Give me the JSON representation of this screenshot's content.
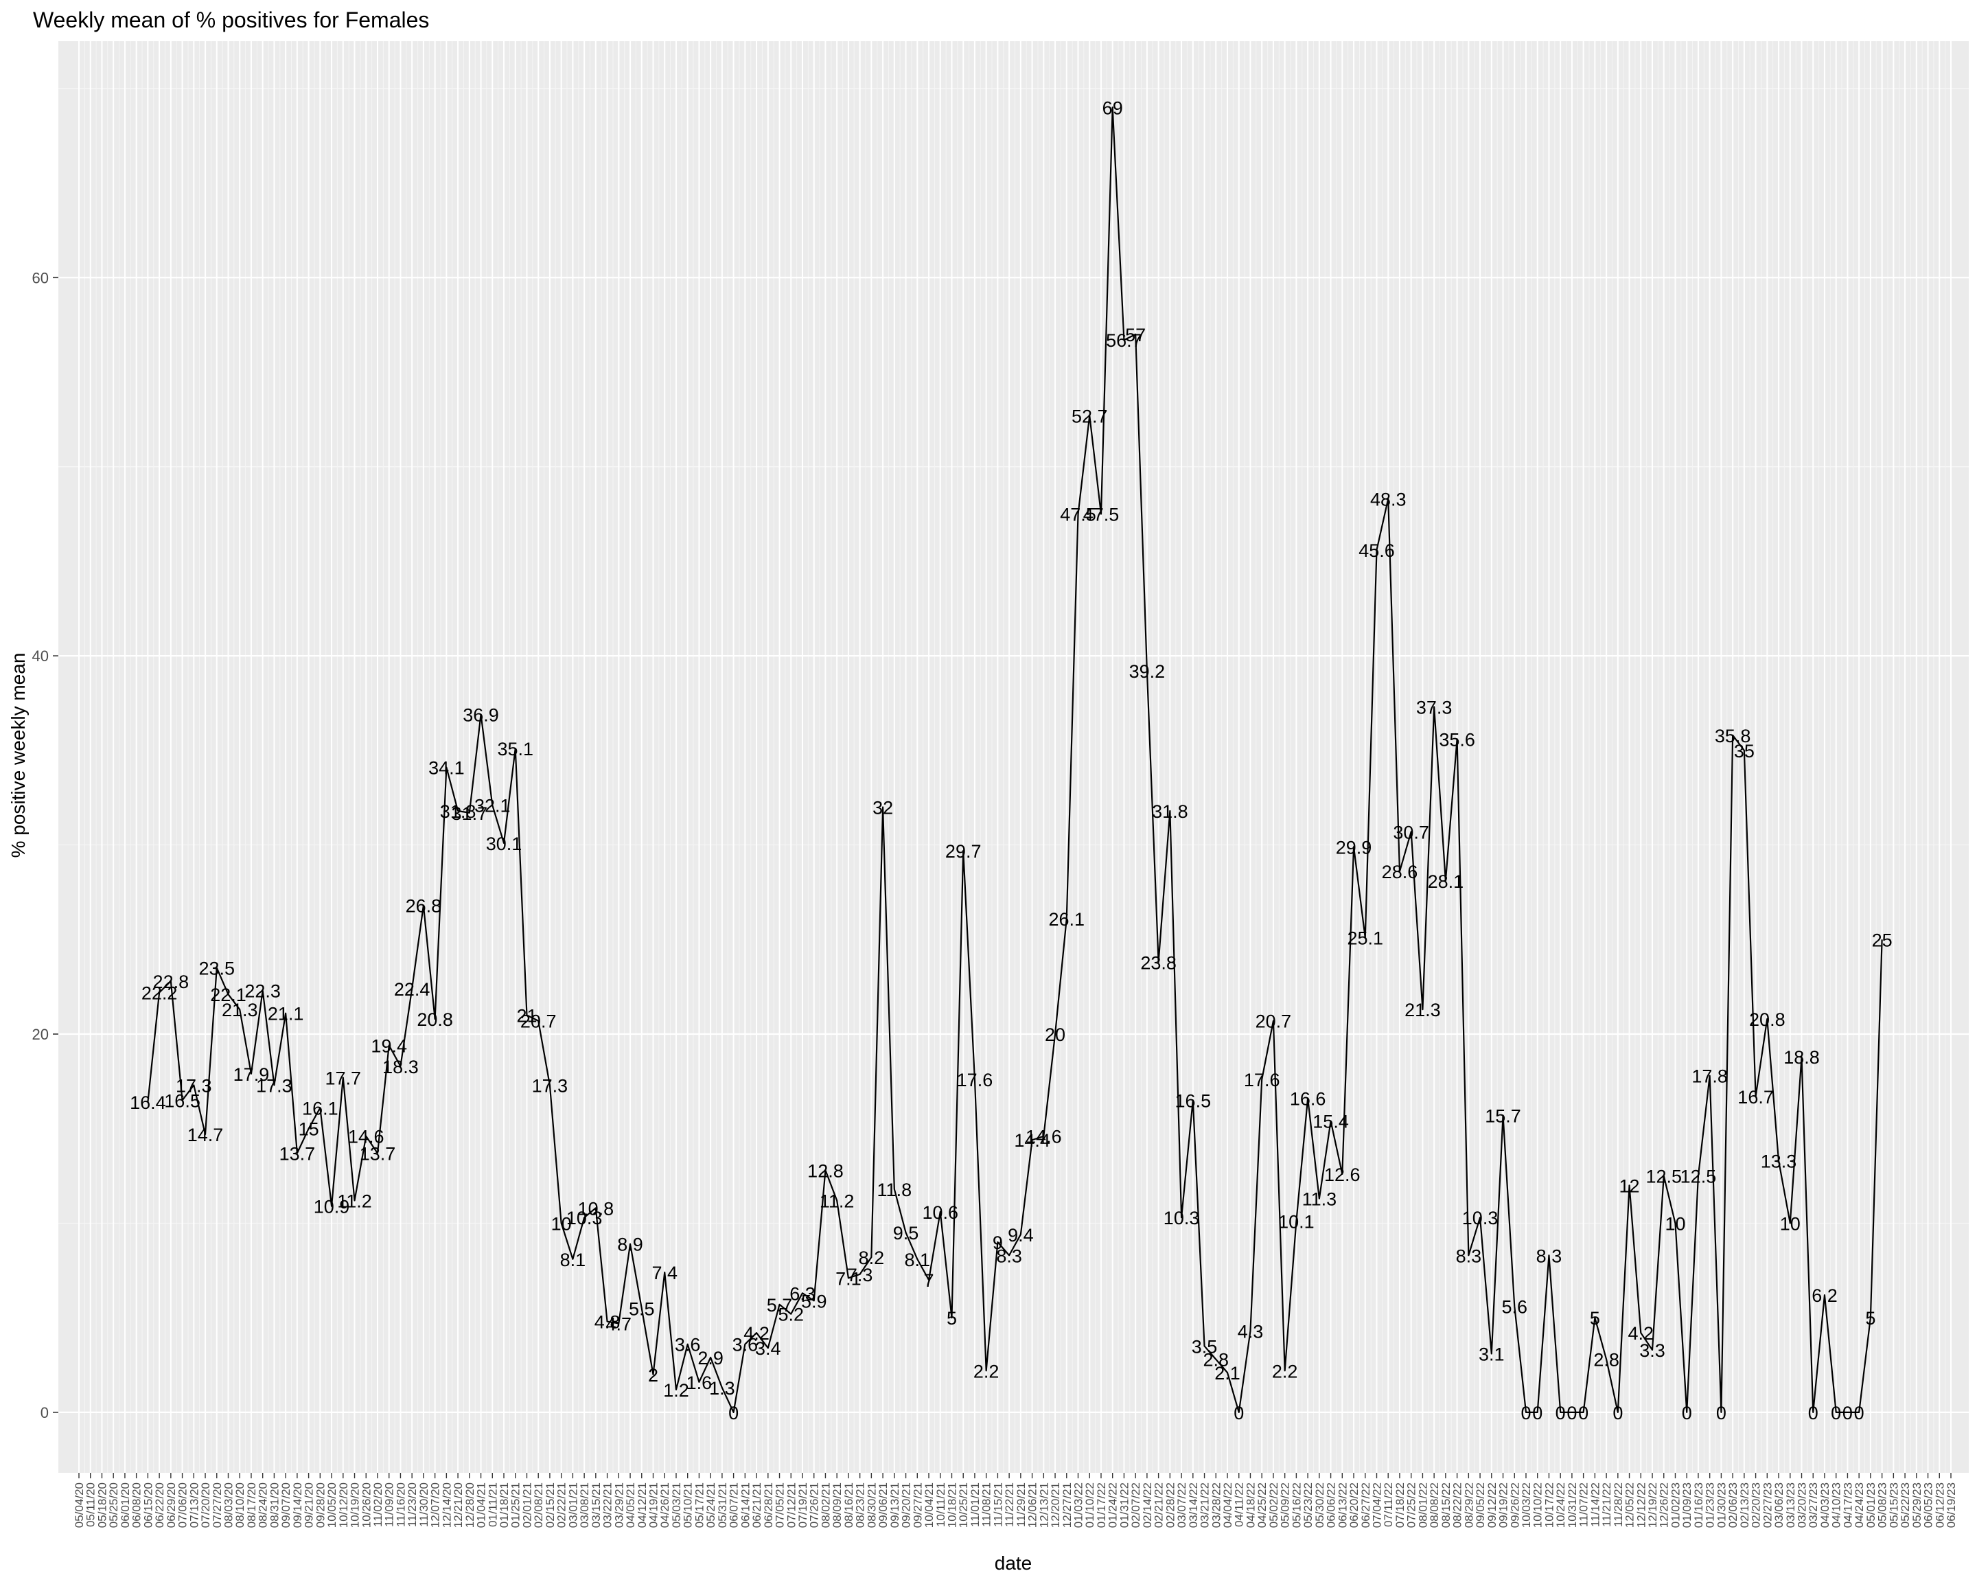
{
  "chart_data": {
    "type": "line",
    "title": "Weekly mean of % positives for Females",
    "xlabel": "date",
    "ylabel": "% positive weekly mean",
    "y_ticks": [
      0,
      20,
      40,
      60
    ],
    "ylim": [
      -3.2,
      72.5
    ],
    "grid": true,
    "x_first": "05/04/20",
    "x_last": "06/19/23",
    "x_tick_interval_days": 7,
    "series": [
      {
        "color": "#000000",
        "points": [
          {
            "x": "06/15/20",
            "y": 16.4,
            "label": "16.4"
          },
          {
            "x": "06/22/20",
            "y": 22.2,
            "label": "22.2"
          },
          {
            "x": "06/29/20",
            "y": 22.8,
            "label": "22.8"
          },
          {
            "x": "07/06/20",
            "y": 16.5,
            "label": "16.5"
          },
          {
            "x": "07/13/20",
            "y": 17.3,
            "label": "17.3"
          },
          {
            "x": "07/20/20",
            "y": 14.7,
            "label": "14.7"
          },
          {
            "x": "07/27/20",
            "y": 23.5,
            "label": "23.5"
          },
          {
            "x": "08/03/20",
            "y": 22.1,
            "label": "22.1"
          },
          {
            "x": "08/10/20",
            "y": 21.3,
            "label": "21.3"
          },
          {
            "x": "08/17/20",
            "y": 17.9,
            "label": "17.9"
          },
          {
            "x": "08/24/20",
            "y": 22.3,
            "label": "22.3"
          },
          {
            "x": "08/31/20",
            "y": 17.3,
            "label": "17.3"
          },
          {
            "x": "09/07/20",
            "y": 21.1,
            "label": "21.1"
          },
          {
            "x": "09/14/20",
            "y": 13.7,
            "label": "13.7"
          },
          {
            "x": "09/21/20",
            "y": 15,
            "label": "15"
          },
          {
            "x": "09/28/20",
            "y": 16.1,
            "label": "16.1"
          },
          {
            "x": "10/05/20",
            "y": 10.9,
            "label": "10.9"
          },
          {
            "x": "10/12/20",
            "y": 17.7,
            "label": "17.7"
          },
          {
            "x": "10/19/20",
            "y": 11.2,
            "label": "11.2"
          },
          {
            "x": "10/26/20",
            "y": 14.6,
            "label": "14.6"
          },
          {
            "x": "11/02/20",
            "y": 13.7,
            "label": "13.7"
          },
          {
            "x": "11/09/20",
            "y": 19.4,
            "label": "19.4"
          },
          {
            "x": "11/16/20",
            "y": 18.3,
            "label": "18.3"
          },
          {
            "x": "11/23/20",
            "y": 22.4,
            "label": "22.4"
          },
          {
            "x": "11/30/20",
            "y": 26.8,
            "label": "26.8"
          },
          {
            "x": "12/07/20",
            "y": 20.8,
            "label": "20.8"
          },
          {
            "x": "12/14/20",
            "y": 34.1,
            "label": "34.1"
          },
          {
            "x": "12/21/20",
            "y": 31.8,
            "label": "31.8"
          },
          {
            "x": "12/28/20",
            "y": 31.7,
            "label": "31.7"
          },
          {
            "x": "01/04/21",
            "y": 36.9,
            "label": "36.9"
          },
          {
            "x": "01/11/21",
            "y": 32.1,
            "label": "32.1"
          },
          {
            "x": "01/18/21",
            "y": 30.1,
            "label": "30.1"
          },
          {
            "x": "01/25/21",
            "y": 35.1,
            "label": "35.1"
          },
          {
            "x": "02/01/21",
            "y": 21,
            "label": "21"
          },
          {
            "x": "02/08/21",
            "y": 20.7,
            "label": "20.7"
          },
          {
            "x": "02/15/21",
            "y": 17.3,
            "label": "17.3"
          },
          {
            "x": "02/22/21",
            "y": 10,
            "label": "10"
          },
          {
            "x": "03/01/21",
            "y": 8.1,
            "label": "8.1"
          },
          {
            "x": "03/08/21",
            "y": 10.3,
            "label": "10.3"
          },
          {
            "x": "03/15/21",
            "y": 10.8,
            "label": "10.8"
          },
          {
            "x": "03/22/21",
            "y": 4.8,
            "label": "4.8"
          },
          {
            "x": "03/29/21",
            "y": 4.7,
            "label": "4.7"
          },
          {
            "x": "04/05/21",
            "y": 8.9,
            "label": "8.9"
          },
          {
            "x": "04/12/21",
            "y": 5.5,
            "label": "5.5"
          },
          {
            "x": "04/19/21",
            "y": 2,
            "label": "2"
          },
          {
            "x": "04/26/21",
            "y": 7.4,
            "label": "7.4"
          },
          {
            "x": "05/03/21",
            "y": 1.2,
            "label": "1.2"
          },
          {
            "x": "05/10/21",
            "y": 3.6,
            "label": "3.6"
          },
          {
            "x": "05/17/21",
            "y": 1.6,
            "label": "1.6"
          },
          {
            "x": "05/24/21",
            "y": 2.9,
            "label": "2.9"
          },
          {
            "x": "05/31/21",
            "y": 1.3,
            "label": "1.3"
          },
          {
            "x": "06/07/21",
            "y": 0,
            "label": "0"
          },
          {
            "x": "06/14/21",
            "y": 3.6,
            "label": "3.6"
          },
          {
            "x": "06/21/21",
            "y": 4.2,
            "label": "4.2"
          },
          {
            "x": "06/28/21",
            "y": 3.4,
            "label": "3.4"
          },
          {
            "x": "07/05/21",
            "y": 5.7,
            "label": "5.7"
          },
          {
            "x": "07/12/21",
            "y": 5.2,
            "label": "5.2"
          },
          {
            "x": "07/19/21",
            "y": 6.3,
            "label": "6.3"
          },
          {
            "x": "07/26/21",
            "y": 5.9,
            "label": "5.9"
          },
          {
            "x": "08/02/21",
            "y": 12.8,
            "label": "12.8"
          },
          {
            "x": "08/09/21",
            "y": 11.2,
            "label": "11.2"
          },
          {
            "x": "08/16/21",
            "y": 7.1,
            "label": "7.1"
          },
          {
            "x": "08/23/21",
            "y": 7.3,
            "label": "7.3"
          },
          {
            "x": "08/30/21",
            "y": 8.2,
            "label": "8.2"
          },
          {
            "x": "09/06/21",
            "y": 32,
            "label": "32"
          },
          {
            "x": "09/13/21",
            "y": 11.8,
            "label": "11.8"
          },
          {
            "x": "09/20/21",
            "y": 9.5,
            "label": "9.5"
          },
          {
            "x": "09/27/21",
            "y": 8.1,
            "label": "8.1"
          },
          {
            "x": "10/04/21",
            "y": 7,
            "label": "7"
          },
          {
            "x": "10/11/21",
            "y": 10.6,
            "label": "10.6"
          },
          {
            "x": "10/18/21",
            "y": 5,
            "label": "5"
          },
          {
            "x": "10/25/21",
            "y": 29.7,
            "label": "29.7"
          },
          {
            "x": "11/01/21",
            "y": 17.6,
            "label": "17.6"
          },
          {
            "x": "11/08/21",
            "y": 2.2,
            "label": "2.2"
          },
          {
            "x": "11/15/21",
            "y": 9,
            "label": "9"
          },
          {
            "x": "11/22/21",
            "y": 8.3,
            "label": "8.3"
          },
          {
            "x": "11/29/21",
            "y": 9.4,
            "label": "9.4"
          },
          {
            "x": "12/06/21",
            "y": 14.4,
            "label": "14.4"
          },
          {
            "x": "12/13/21",
            "y": 14.6,
            "label": "14.6"
          },
          {
            "x": "12/20/21",
            "y": 20,
            "label": "20"
          },
          {
            "x": "12/27/21",
            "y": 26.1,
            "label": "26.1"
          },
          {
            "x": "01/03/22",
            "y": 47.5,
            "label": "47.5"
          },
          {
            "x": "01/10/22",
            "y": 52.7,
            "label": "52.7"
          },
          {
            "x": "01/17/22",
            "y": 47.5,
            "label": "47.5"
          },
          {
            "x": "01/24/22",
            "y": 69,
            "label": "69"
          },
          {
            "x": "01/31/22",
            "y": 56.7,
            "label": "56.7"
          },
          {
            "x": "02/07/22",
            "y": 57,
            "label": "57"
          },
          {
            "x": "02/14/22",
            "y": 39.2,
            "label": "39.2"
          },
          {
            "x": "02/21/22",
            "y": 23.8,
            "label": "23.8"
          },
          {
            "x": "02/28/22",
            "y": 31.8,
            "label": "31.8"
          },
          {
            "x": "03/07/22",
            "y": 10.3,
            "label": "10.3"
          },
          {
            "x": "03/14/22",
            "y": 16.5,
            "label": "16.5"
          },
          {
            "x": "03/21/22",
            "y": 3.5,
            "label": "3.5"
          },
          {
            "x": "03/28/22",
            "y": 2.8,
            "label": "2.8"
          },
          {
            "x": "04/04/22",
            "y": 2.1,
            "label": "2.1"
          },
          {
            "x": "04/11/22",
            "y": 0,
            "label": "0"
          },
          {
            "x": "04/18/22",
            "y": 4.3,
            "label": "4.3"
          },
          {
            "x": "04/25/22",
            "y": 17.6,
            "label": "17.6"
          },
          {
            "x": "05/02/22",
            "y": 20.7,
            "label": "20.7"
          },
          {
            "x": "05/09/22",
            "y": 2.2,
            "label": "2.2"
          },
          {
            "x": "05/16/22",
            "y": 10.1,
            "label": "10.1"
          },
          {
            "x": "05/23/22",
            "y": 16.6,
            "label": "16.6"
          },
          {
            "x": "05/30/22",
            "y": 11.3,
            "label": "11.3"
          },
          {
            "x": "06/06/22",
            "y": 15.4,
            "label": "15.4"
          },
          {
            "x": "06/13/22",
            "y": 12.6,
            "label": "12.6"
          },
          {
            "x": "06/20/22",
            "y": 29.9,
            "label": "29.9"
          },
          {
            "x": "06/27/22",
            "y": 25.1,
            "label": "25.1"
          },
          {
            "x": "07/04/22",
            "y": 45.6,
            "label": "45.6"
          },
          {
            "x": "07/11/22",
            "y": 48.3,
            "label": "48.3"
          },
          {
            "x": "07/18/22",
            "y": 28.6,
            "label": "28.6"
          },
          {
            "x": "07/25/22",
            "y": 30.7,
            "label": "30.7"
          },
          {
            "x": "08/01/22",
            "y": 21.3,
            "label": "21.3"
          },
          {
            "x": "08/08/22",
            "y": 37.3,
            "label": "37.3"
          },
          {
            "x": "08/15/22",
            "y": 28.1,
            "label": "28.1"
          },
          {
            "x": "08/22/22",
            "y": 35.6,
            "label": "35.6"
          },
          {
            "x": "08/29/22",
            "y": 8.3,
            "label": "8.3"
          },
          {
            "x": "09/05/22",
            "y": 10.3,
            "label": "10.3"
          },
          {
            "x": "09/12/22",
            "y": 3.1,
            "label": "3.1"
          },
          {
            "x": "09/19/22",
            "y": 15.7,
            "label": "15.7"
          },
          {
            "x": "09/26/22",
            "y": 5.6,
            "label": "5.6"
          },
          {
            "x": "10/03/22",
            "y": 0,
            "label": "0"
          },
          {
            "x": "10/10/22",
            "y": 0,
            "label": "0"
          },
          {
            "x": "10/17/22",
            "y": 8.3,
            "label": "8.3"
          },
          {
            "x": "10/24/22",
            "y": 0,
            "label": "0"
          },
          {
            "x": "10/31/22",
            "y": 0,
            "label": "0"
          },
          {
            "x": "11/07/22",
            "y": 0,
            "label": "0"
          },
          {
            "x": "11/14/22",
            "y": 5,
            "label": "5"
          },
          {
            "x": "11/21/22",
            "y": 2.8,
            "label": "2.8"
          },
          {
            "x": "11/28/22",
            "y": 0,
            "label": "0"
          },
          {
            "x": "12/05/22",
            "y": 12,
            "label": "12"
          },
          {
            "x": "12/12/22",
            "y": 4.2,
            "label": "4.2"
          },
          {
            "x": "12/19/22",
            "y": 3.3,
            "label": "3.3"
          },
          {
            "x": "12/26/22",
            "y": 12.5,
            "label": "12.5"
          },
          {
            "x": "01/02/23",
            "y": 10,
            "label": "10"
          },
          {
            "x": "01/09/23",
            "y": 0,
            "label": "0"
          },
          {
            "x": "01/16/23",
            "y": 12.5,
            "label": "12.5"
          },
          {
            "x": "01/23/23",
            "y": 17.8,
            "label": "17.8"
          },
          {
            "x": "01/30/23",
            "y": 0,
            "label": "0"
          },
          {
            "x": "02/06/23",
            "y": 35.8,
            "label": "35.8"
          },
          {
            "x": "02/13/23",
            "y": 35,
            "label": "35"
          },
          {
            "x": "02/20/23",
            "y": 16.7,
            "label": "16.7"
          },
          {
            "x": "02/27/23",
            "y": 20.8,
            "label": "20.8"
          },
          {
            "x": "03/06/23",
            "y": 13.3,
            "label": "13.3"
          },
          {
            "x": "03/13/23",
            "y": 10,
            "label": "10"
          },
          {
            "x": "03/20/23",
            "y": 18.8,
            "label": "18.8"
          },
          {
            "x": "03/27/23",
            "y": 0,
            "label": "0"
          },
          {
            "x": "04/03/23",
            "y": 6.2,
            "label": "6.2"
          },
          {
            "x": "04/10/23",
            "y": 0,
            "label": "0"
          },
          {
            "x": "04/17/23",
            "y": 0,
            "label": "0"
          },
          {
            "x": "04/24/23",
            "y": 0,
            "label": "0"
          },
          {
            "x": "05/01/23",
            "y": 5,
            "label": "5"
          },
          {
            "x": "05/08/23",
            "y": 25,
            "label": "25"
          }
        ]
      }
    ]
  }
}
